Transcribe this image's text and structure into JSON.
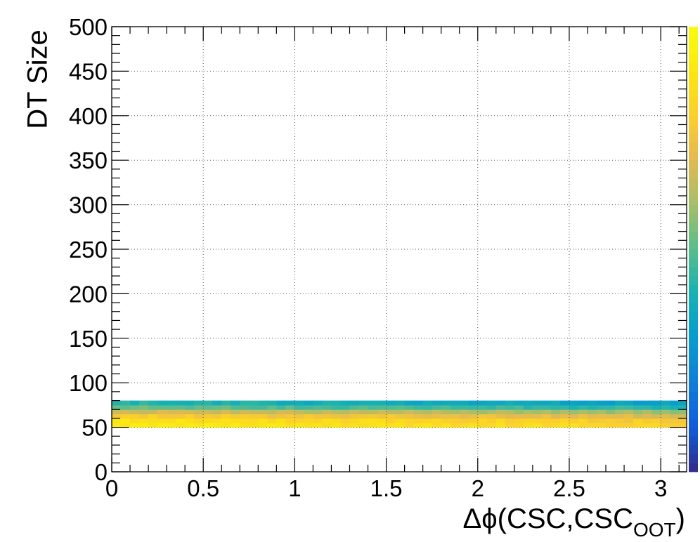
{
  "chart_data": {
    "type": "heatmap",
    "title": "",
    "xlabel": {
      "main": "Δϕ(CSC,CSC",
      "subscript": "OOT",
      "close": ")"
    },
    "ylabel": "DT Size",
    "xlim": [
      0,
      3.14159
    ],
    "ylim": [
      0,
      500
    ],
    "x_ticks": [
      "0",
      "0.5",
      "1",
      "1.5",
      "2",
      "2.5",
      "3"
    ],
    "x_tick_values": [
      0,
      0.5,
      1,
      1.5,
      2,
      2.5,
      3
    ],
    "y_ticks": [
      "0",
      "50",
      "100",
      "150",
      "200",
      "250",
      "300",
      "350",
      "400",
      "450",
      "500"
    ],
    "y_tick_values": [
      0,
      50,
      100,
      150,
      200,
      250,
      300,
      350,
      400,
      450,
      500
    ],
    "grid": true,
    "colormap": "parula",
    "colorbar": true,
    "colorbar_ticks": false,
    "x_bin_width": 0.05,
    "y_bin_width": 5,
    "populated_y_range": [
      50,
      80
    ],
    "y_bins": [
      {
        "y": [
          50,
          55
        ],
        "level": 0.92
      },
      {
        "y": [
          55,
          60
        ],
        "level": 0.88
      },
      {
        "y": [
          60,
          65
        ],
        "level": 0.8
      },
      {
        "y": [
          65,
          70
        ],
        "level": 0.68
      },
      {
        "y": [
          70,
          75
        ],
        "level": 0.52
      },
      {
        "y": [
          75,
          80
        ],
        "level": 0.42
      }
    ],
    "x_trend": "density decreases slowly with increasing Δϕ",
    "colors": {
      "low": "#352a87",
      "high": "#f9fb0e",
      "grid": "#555555"
    }
  }
}
